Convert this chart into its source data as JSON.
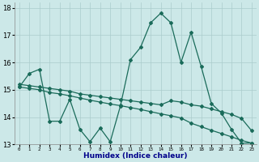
{
  "line1_x": [
    0,
    1,
    2,
    3,
    4,
    5,
    6,
    7,
    8,
    9,
    10,
    11,
    12,
    13,
    14,
    15,
    16,
    17,
    18,
    19,
    20,
    21,
    22,
    23
  ],
  "line1_y": [
    15.1,
    15.6,
    15.75,
    13.85,
    13.85,
    14.65,
    13.55,
    13.1,
    13.6,
    13.1,
    14.4,
    16.1,
    16.55,
    17.45,
    17.8,
    17.45,
    16.0,
    17.1,
    15.85,
    14.5,
    14.15,
    13.55,
    13.05,
    13.05
  ],
  "line2_x": [
    0,
    1,
    2,
    3,
    4,
    5,
    6,
    7,
    8,
    9,
    10,
    11,
    12,
    13,
    14,
    15,
    16,
    17,
    18,
    19,
    20,
    21,
    22,
    23
  ],
  "line2_y": [
    15.2,
    15.15,
    15.1,
    15.05,
    15.0,
    14.95,
    14.85,
    14.8,
    14.75,
    14.7,
    14.65,
    14.6,
    14.55,
    14.5,
    14.45,
    14.6,
    14.55,
    14.45,
    14.4,
    14.3,
    14.2,
    14.1,
    13.95,
    13.5
  ],
  "line3_x": [
    0,
    1,
    2,
    3,
    4,
    5,
    6,
    7,
    8,
    9,
    10,
    11,
    12,
    13,
    14,
    15,
    16,
    17,
    18,
    19,
    20,
    21,
    22,
    23
  ],
  "line3_y": [
    15.1,
    15.05,
    15.0,
    14.9,
    14.85,
    14.78,
    14.7,
    14.62,
    14.55,
    14.48,
    14.42,
    14.35,
    14.28,
    14.2,
    14.12,
    14.05,
    13.97,
    13.78,
    13.65,
    13.52,
    13.4,
    13.28,
    13.15,
    13.05
  ],
  "line_color": "#1a6b5a",
  "bg_color": "#cce8e8",
  "grid_color": "#aacccc",
  "xlabel": "Humidex (Indice chaleur)",
  "xlim": [
    0,
    23
  ],
  "ylim": [
    13,
    18.2
  ],
  "yticks": [
    13,
    14,
    15,
    16,
    17,
    18
  ],
  "xticks": [
    0,
    1,
    2,
    3,
    4,
    5,
    6,
    7,
    8,
    9,
    10,
    11,
    12,
    13,
    14,
    15,
    16,
    17,
    18,
    19,
    20,
    21,
    22,
    23
  ]
}
